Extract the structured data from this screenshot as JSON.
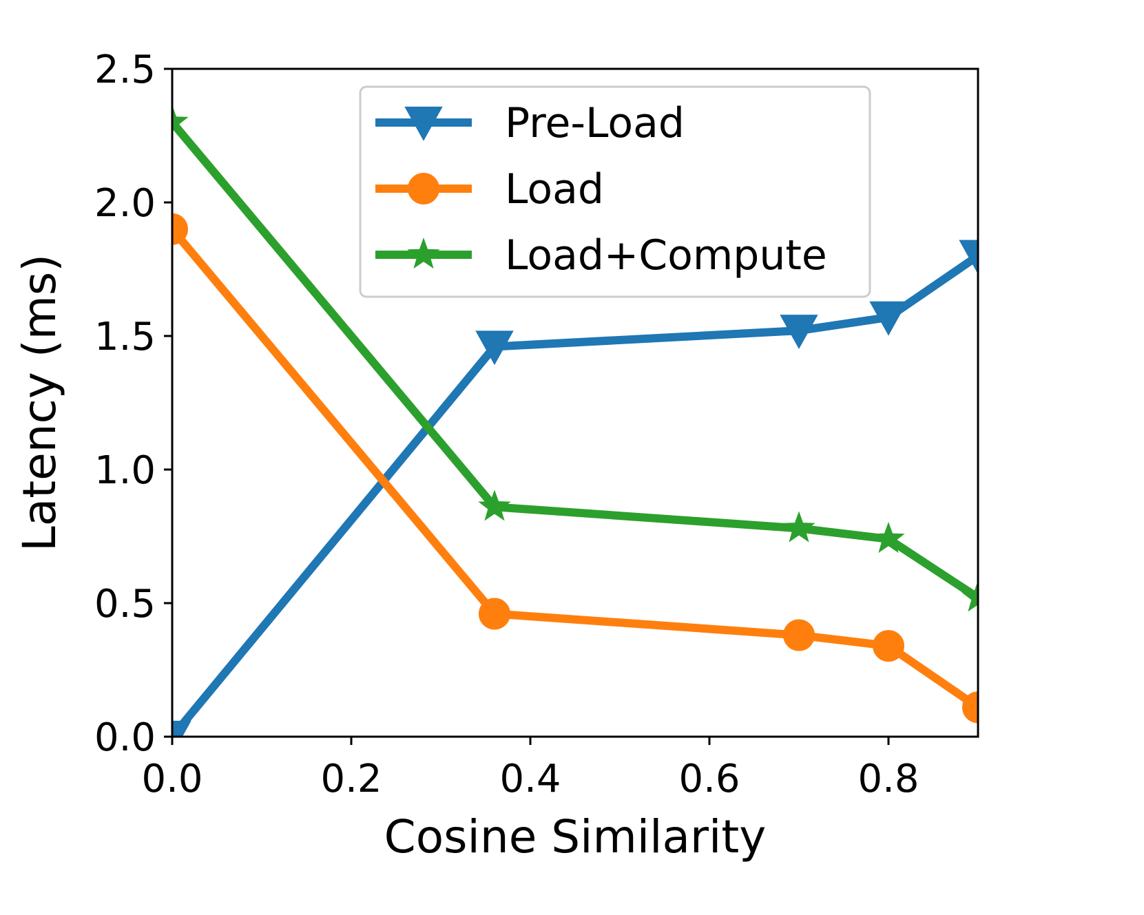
{
  "chart_data": {
    "type": "line",
    "title": "",
    "xlabel": "Cosine Similarity",
    "ylabel": "Latency (ms)",
    "xlim": [
      0.0,
      0.9
    ],
    "ylim": [
      0.0,
      2.5
    ],
    "xticks": [
      "0.0",
      "0.2",
      "0.4",
      "0.6",
      "0.8"
    ],
    "xtick_values": [
      0.0,
      0.2,
      0.4,
      0.6,
      0.8
    ],
    "yticks": [
      "0.0",
      "0.5",
      "1.0",
      "1.5",
      "2.0",
      "2.5"
    ],
    "ytick_values": [
      0.0,
      0.5,
      1.0,
      1.5,
      2.0,
      2.5
    ],
    "grid": false,
    "legend_position": "top-right",
    "x": [
      0.0,
      0.36,
      0.7,
      0.8,
      0.9
    ],
    "series": [
      {
        "name": "Pre-Load",
        "color": "#1f77b4",
        "marker": "triangle-down",
        "values": [
          0.0,
          1.46,
          1.52,
          1.57,
          1.8
        ]
      },
      {
        "name": "Load",
        "color": "#ff7f0e",
        "marker": "circle",
        "values": [
          1.9,
          0.46,
          0.38,
          0.34,
          0.11
        ]
      },
      {
        "name": "Load+Compute",
        "color": "#2ca02c",
        "marker": "star",
        "values": [
          2.3,
          0.86,
          0.78,
          0.74,
          0.52
        ]
      }
    ]
  }
}
